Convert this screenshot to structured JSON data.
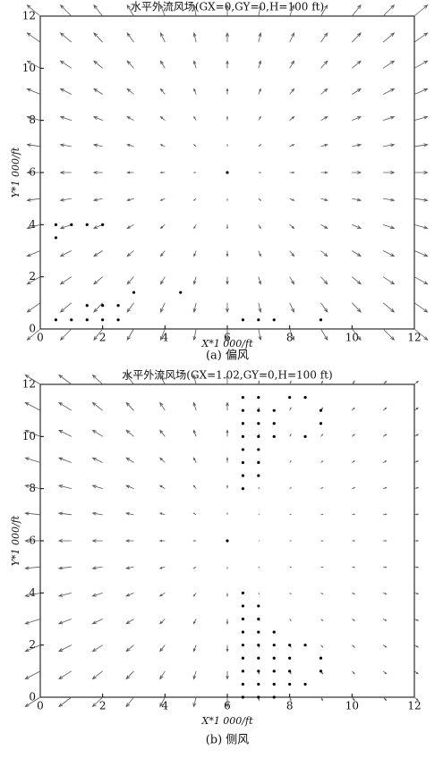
{
  "chart_data": [
    {
      "type": "quiver",
      "title": "水平外流风场(GX=0,GY=0,H=100 ft)",
      "xlabel": "X*1 000/ft",
      "ylabel": "Y*1 000/ft",
      "caption": "(a) 偏风",
      "xlim": [
        0,
        12
      ],
      "ylim": [
        0,
        12
      ],
      "xticks": [
        0,
        2,
        4,
        6,
        8,
        10,
        12
      ],
      "yticks": [
        0,
        2,
        4,
        6,
        8,
        10,
        12
      ],
      "color": "#555555",
      "x": [
        0,
        1,
        2,
        3,
        4,
        5,
        6,
        7,
        8,
        9,
        10,
        11,
        12
      ],
      "y": [
        0,
        1,
        2,
        3,
        4,
        5,
        6,
        7,
        8,
        9,
        10,
        11,
        12
      ],
      "u": [
        [
          -0.42,
          -0.35,
          -0.28,
          -0.21,
          -0.14,
          -0.07,
          0,
          0.07,
          0.14,
          0.21,
          0.28,
          0.35,
          0.42
        ],
        [
          -0.42,
          -0.35,
          -0.28,
          -0.21,
          -0.14,
          -0.07,
          0,
          0.07,
          0.14,
          0.21,
          0.28,
          0.35,
          0.42
        ],
        [
          -0.42,
          -0.35,
          -0.28,
          -0.21,
          -0.14,
          -0.07,
          0,
          0.07,
          0.14,
          0.21,
          0.28,
          0.35,
          0.42
        ],
        [
          -0.42,
          -0.35,
          -0.28,
          -0.21,
          -0.14,
          -0.07,
          0,
          0.07,
          0.14,
          0.21,
          0.28,
          0.35,
          0.42
        ],
        [
          -0.42,
          -0.35,
          -0.28,
          -0.21,
          -0.14,
          -0.07,
          0,
          0.07,
          0.14,
          0.21,
          0.28,
          0.35,
          0.42
        ],
        [
          -0.42,
          -0.35,
          -0.28,
          -0.21,
          -0.14,
          -0.07,
          0,
          0.07,
          0.14,
          0.21,
          0.28,
          0.35,
          0.42
        ],
        [
          -0.42,
          -0.35,
          -0.28,
          -0.21,
          -0.14,
          -0.07,
          0,
          0.07,
          0.14,
          0.21,
          0.28,
          0.35,
          0.42
        ],
        [
          -0.42,
          -0.35,
          -0.28,
          -0.21,
          -0.14,
          -0.07,
          0,
          0.07,
          0.14,
          0.21,
          0.28,
          0.35,
          0.42
        ],
        [
          -0.42,
          -0.35,
          -0.28,
          -0.21,
          -0.14,
          -0.07,
          0,
          0.07,
          0.14,
          0.21,
          0.28,
          0.35,
          0.42
        ],
        [
          -0.42,
          -0.35,
          -0.28,
          -0.21,
          -0.14,
          -0.07,
          0,
          0.07,
          0.14,
          0.21,
          0.28,
          0.35,
          0.42
        ],
        [
          -0.42,
          -0.35,
          -0.28,
          -0.21,
          -0.14,
          -0.07,
          0,
          0.07,
          0.14,
          0.21,
          0.28,
          0.35,
          0.42
        ],
        [
          -0.42,
          -0.35,
          -0.28,
          -0.21,
          -0.14,
          -0.07,
          0,
          0.07,
          0.14,
          0.21,
          0.28,
          0.35,
          0.42
        ],
        [
          -0.42,
          -0.35,
          -0.28,
          -0.21,
          -0.14,
          -0.07,
          0,
          0.07,
          0.14,
          0.21,
          0.28,
          0.35,
          0.42
        ]
      ],
      "v": [
        [
          -0.42,
          -0.42,
          -0.42,
          -0.42,
          -0.42,
          -0.42,
          -0.42,
          -0.42,
          -0.42,
          -0.42,
          -0.42,
          -0.42,
          -0.42
        ],
        [
          -0.35,
          -0.35,
          -0.35,
          -0.35,
          -0.35,
          -0.35,
          -0.35,
          -0.35,
          -0.35,
          -0.35,
          -0.35,
          -0.35,
          -0.35
        ],
        [
          -0.28,
          -0.28,
          -0.28,
          -0.28,
          -0.28,
          -0.28,
          -0.28,
          -0.28,
          -0.28,
          -0.28,
          -0.28,
          -0.28,
          -0.28
        ],
        [
          -0.21,
          -0.21,
          -0.21,
          -0.21,
          -0.21,
          -0.21,
          -0.21,
          -0.21,
          -0.21,
          -0.21,
          -0.21,
          -0.21,
          -0.21
        ],
        [
          -0.14,
          -0.14,
          -0.14,
          -0.14,
          -0.14,
          -0.14,
          -0.14,
          -0.14,
          -0.14,
          -0.14,
          -0.14,
          -0.14,
          -0.14
        ],
        [
          -0.07,
          -0.07,
          -0.07,
          -0.07,
          -0.07,
          -0.07,
          -0.07,
          -0.07,
          -0.07,
          -0.07,
          -0.07,
          -0.07,
          -0.07
        ],
        [
          0,
          0,
          0,
          0,
          0,
          0,
          0,
          0,
          0,
          0,
          0,
          0,
          0
        ],
        [
          0.07,
          0.07,
          0.07,
          0.07,
          0.07,
          0.07,
          0.07,
          0.07,
          0.07,
          0.07,
          0.07,
          0.07,
          0.07
        ],
        [
          0.14,
          0.14,
          0.14,
          0.14,
          0.14,
          0.14,
          0.14,
          0.14,
          0.14,
          0.14,
          0.14,
          0.14,
          0.14
        ],
        [
          0.21,
          0.21,
          0.21,
          0.21,
          0.21,
          0.21,
          0.21,
          0.21,
          0.21,
          0.21,
          0.21,
          0.21,
          0.21
        ],
        [
          0.28,
          0.28,
          0.28,
          0.28,
          0.28,
          0.28,
          0.28,
          0.28,
          0.28,
          0.28,
          0.28,
          0.28,
          0.28
        ],
        [
          0.35,
          0.35,
          0.35,
          0.35,
          0.35,
          0.35,
          0.35,
          0.35,
          0.35,
          0.35,
          0.35,
          0.35,
          0.35
        ],
        [
          0.42,
          0.42,
          0.42,
          0.42,
          0.42,
          0.42,
          0.42,
          0.42,
          0.42,
          0.42,
          0.42,
          0.42,
          0.42
        ]
      ],
      "points": {
        "x": [
          0.5,
          0.5,
          1,
          1.5,
          2,
          6,
          3,
          4.5,
          1.5,
          2,
          2.5,
          0.5,
          1,
          1.5,
          2,
          2.5,
          6.5,
          7,
          7.5,
          9
        ],
        "y": [
          4,
          3.5,
          4,
          4,
          4,
          6,
          1.4,
          1.4,
          0.9,
          0.9,
          0.9,
          0.35,
          0.35,
          0.35,
          0.35,
          0.35,
          0.35,
          0.35,
          0.35,
          0.35
        ]
      }
    },
    {
      "type": "quiver",
      "title": "水平外流风场(GX=1.02,GY=0,H=100 ft)",
      "xlabel": "X*1 000/ft",
      "ylabel": "Y*1 000/ft",
      "caption": "(b) 侧风",
      "xlim": [
        0,
        12
      ],
      "ylim": [
        0,
        12
      ],
      "xticks": [
        0,
        2,
        4,
        6,
        8,
        10,
        12
      ],
      "yticks": [
        0,
        2,
        4,
        6,
        8,
        10,
        12
      ],
      "color": "#555555",
      "x": [
        0,
        1,
        2,
        3,
        4,
        5,
        6,
        7,
        8,
        9,
        10,
        11,
        12
      ],
      "y": [
        0,
        1,
        2,
        3,
        4,
        5,
        6,
        7,
        8,
        9,
        10,
        11,
        12
      ],
      "u": [
        [
          -0.48,
          -0.4,
          -0.32,
          -0.24,
          -0.16,
          -0.08,
          0,
          0.02,
          0.04,
          0.06,
          0.08,
          0.1,
          0.12
        ],
        [
          -0.48,
          -0.4,
          -0.32,
          -0.24,
          -0.16,
          -0.08,
          0,
          0.02,
          0.04,
          0.06,
          0.08,
          0.1,
          0.12
        ],
        [
          -0.48,
          -0.4,
          -0.32,
          -0.24,
          -0.16,
          -0.08,
          0,
          0.02,
          0.04,
          0.06,
          0.08,
          0.1,
          0.12
        ],
        [
          -0.48,
          -0.4,
          -0.32,
          -0.24,
          -0.16,
          -0.08,
          0,
          0.02,
          0.04,
          0.06,
          0.08,
          0.1,
          0.12
        ],
        [
          -0.48,
          -0.4,
          -0.32,
          -0.24,
          -0.16,
          -0.08,
          0,
          0.02,
          0.04,
          0.06,
          0.08,
          0.1,
          0.12
        ],
        [
          -0.48,
          -0.4,
          -0.32,
          -0.24,
          -0.16,
          -0.08,
          0,
          0.02,
          0.04,
          0.06,
          0.08,
          0.1,
          0.12
        ],
        [
          -0.48,
          -0.4,
          -0.32,
          -0.24,
          -0.16,
          -0.08,
          0,
          0.02,
          0.04,
          0.06,
          0.08,
          0.1,
          0.12
        ],
        [
          -0.48,
          -0.4,
          -0.32,
          -0.24,
          -0.16,
          -0.08,
          0,
          0.02,
          0.04,
          0.06,
          0.08,
          0.1,
          0.12
        ],
        [
          -0.48,
          -0.4,
          -0.32,
          -0.24,
          -0.16,
          -0.08,
          0,
          0.02,
          0.04,
          0.06,
          0.08,
          0.1,
          0.12
        ],
        [
          -0.48,
          -0.4,
          -0.32,
          -0.24,
          -0.16,
          -0.08,
          0,
          0.02,
          0.04,
          0.06,
          0.08,
          0.1,
          0.12
        ],
        [
          -0.48,
          -0.4,
          -0.32,
          -0.24,
          -0.16,
          -0.08,
          0,
          0.02,
          0.04,
          0.06,
          0.08,
          0.1,
          0.12
        ],
        [
          -0.48,
          -0.4,
          -0.32,
          -0.24,
          -0.16,
          -0.08,
          0,
          0.02,
          0.04,
          0.06,
          0.08,
          0.1,
          0.12
        ],
        [
          -0.48,
          -0.4,
          -0.32,
          -0.24,
          -0.16,
          -0.08,
          0,
          0.02,
          0.04,
          0.06,
          0.08,
          0.1,
          0.12
        ]
      ],
      "v": [
        [
          -0.36,
          -0.36,
          -0.36,
          -0.36,
          -0.36,
          -0.36,
          -0.36,
          -0.12,
          -0.12,
          -0.12,
          -0.12,
          -0.12,
          -0.12
        ],
        [
          -0.3,
          -0.3,
          -0.3,
          -0.3,
          -0.3,
          -0.3,
          -0.3,
          -0.1,
          -0.1,
          -0.1,
          -0.1,
          -0.1,
          -0.1
        ],
        [
          -0.24,
          -0.24,
          -0.24,
          -0.24,
          -0.24,
          -0.24,
          -0.24,
          -0.08,
          -0.08,
          -0.08,
          -0.08,
          -0.08,
          -0.08
        ],
        [
          -0.18,
          -0.18,
          -0.18,
          -0.18,
          -0.18,
          -0.18,
          -0.18,
          -0.06,
          -0.06,
          -0.06,
          -0.06,
          -0.06,
          -0.06
        ],
        [
          -0.12,
          -0.12,
          -0.12,
          -0.12,
          -0.12,
          -0.12,
          -0.12,
          -0.04,
          -0.04,
          -0.04,
          -0.04,
          -0.04,
          -0.04
        ],
        [
          -0.06,
          -0.06,
          -0.06,
          -0.06,
          -0.06,
          -0.06,
          -0.06,
          -0.02,
          -0.02,
          -0.02,
          -0.02,
          -0.02,
          -0.02
        ],
        [
          0,
          0,
          0,
          0,
          0,
          0,
          0,
          0,
          0,
          0,
          0,
          0,
          0
        ],
        [
          0.06,
          0.06,
          0.06,
          0.06,
          0.06,
          0.06,
          0.06,
          0.02,
          0.02,
          0.02,
          0.02,
          0.02,
          0.02
        ],
        [
          0.12,
          0.12,
          0.12,
          0.12,
          0.12,
          0.12,
          0.12,
          0.04,
          0.04,
          0.04,
          0.04,
          0.04,
          0.04
        ],
        [
          0.18,
          0.18,
          0.18,
          0.18,
          0.18,
          0.18,
          0.18,
          0.06,
          0.06,
          0.06,
          0.06,
          0.06,
          0.06
        ],
        [
          0.24,
          0.24,
          0.24,
          0.24,
          0.24,
          0.24,
          0.24,
          0.08,
          0.08,
          0.08,
          0.08,
          0.08,
          0.08
        ],
        [
          0.3,
          0.3,
          0.3,
          0.3,
          0.3,
          0.3,
          0.3,
          0.1,
          0.1,
          0.1,
          0.1,
          0.1,
          0.1
        ],
        [
          0.36,
          0.36,
          0.36,
          0.36,
          0.36,
          0.36,
          0.36,
          0.12,
          0.12,
          0.12,
          0.12,
          0.12,
          0.12
        ]
      ],
      "points": {
        "x": [
          6,
          6.5,
          6.5,
          6.5,
          6.5,
          6.5,
          6.5,
          6.5,
          6.5,
          7,
          7,
          7,
          7,
          7,
          7,
          7,
          7.5,
          7.5,
          7.5,
          8,
          8.5,
          8.5,
          9,
          9,
          6.5,
          6.5,
          6.5,
          6.5,
          6.5,
          6.5,
          6.5,
          6.5,
          6.5,
          7,
          7,
          7,
          7,
          7,
          7,
          7,
          7,
          7.5,
          7.5,
          7.5,
          7.5,
          7.5,
          7.5,
          8,
          8,
          8,
          8,
          8.5,
          8.5,
          9,
          9
        ],
        "y": [
          6,
          8,
          8.5,
          9,
          9.5,
          10,
          10.5,
          11,
          11.5,
          8.5,
          9,
          9.5,
          10,
          10.5,
          11,
          11.5,
          10,
          10.5,
          11,
          11.5,
          11.5,
          10,
          11,
          10.5,
          0,
          0.5,
          1,
          1.5,
          2,
          2.5,
          3,
          3.5,
          4,
          0,
          0.5,
          1,
          1.5,
          2,
          2.5,
          3,
          3.5,
          0,
          0.5,
          1,
          1.5,
          2,
          2.5,
          0.5,
          1,
          1.5,
          2,
          0.5,
          2,
          1,
          1.5
        ]
      }
    }
  ]
}
